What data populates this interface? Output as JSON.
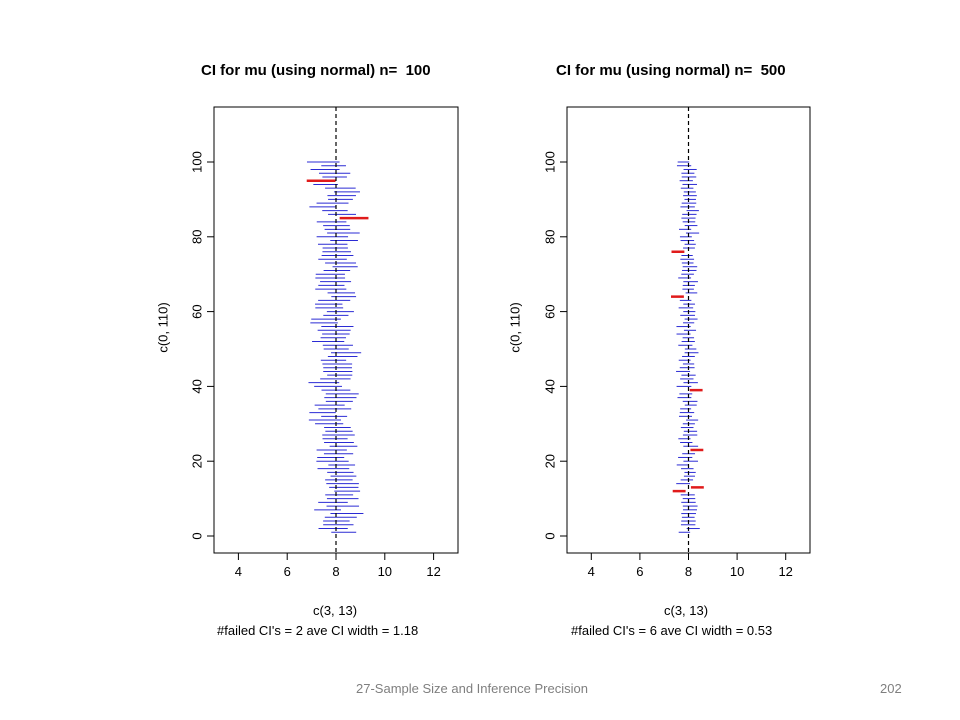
{
  "footer": {
    "text": "27-Sample Size and Inference Precision",
    "page_number": "202"
  },
  "colors": {
    "covering_interval": "#2b2bd4",
    "failed_interval": "#e01b1b",
    "reference_line": "#000000"
  },
  "chart_data": [
    {
      "type": "interval",
      "title": "CI for mu (using normal) n=  100",
      "xlabel": "c(3, 13)",
      "ylabel": "c(0, 110)",
      "caption": "#failed CI's = 2 ave CI width = 1.18",
      "xlim": [
        3,
        13
      ],
      "ylim": [
        0,
        110
      ],
      "xticks": [
        4,
        6,
        8,
        10,
        12
      ],
      "yticks": [
        0,
        20,
        40,
        60,
        80,
        100
      ],
      "reference_x": 8,
      "n": 100,
      "failed_count": 2,
      "ave_width": 1.18,
      "failed": [
        {
          "index": 95,
          "lower": 6.8,
          "upper": 7.98
        },
        {
          "index": 85,
          "lower": 8.15,
          "upper": 9.33
        }
      ]
    },
    {
      "type": "interval",
      "title": "CI for mu (using normal) n=  500",
      "xlabel": "c(3, 13)",
      "ylabel": "c(0, 110)",
      "caption": "#failed CI's = 6 ave CI width = 0.53",
      "xlim": [
        3,
        13
      ],
      "ylim": [
        0,
        110
      ],
      "xticks": [
        4,
        6,
        8,
        10,
        12
      ],
      "yticks": [
        0,
        20,
        40,
        60,
        80,
        100
      ],
      "reference_x": 8,
      "n": 500,
      "failed_count": 6,
      "ave_width": 0.53,
      "failed": [
        {
          "index": 76,
          "lower": 7.3,
          "upper": 7.83
        },
        {
          "index": 64,
          "lower": 7.28,
          "upper": 7.81
        },
        {
          "index": 39,
          "lower": 8.05,
          "upper": 8.58
        },
        {
          "index": 23,
          "lower": 8.08,
          "upper": 8.61
        },
        {
          "index": 13,
          "lower": 8.1,
          "upper": 8.63
        },
        {
          "index": 12,
          "lower": 7.35,
          "upper": 7.88
        }
      ]
    }
  ]
}
